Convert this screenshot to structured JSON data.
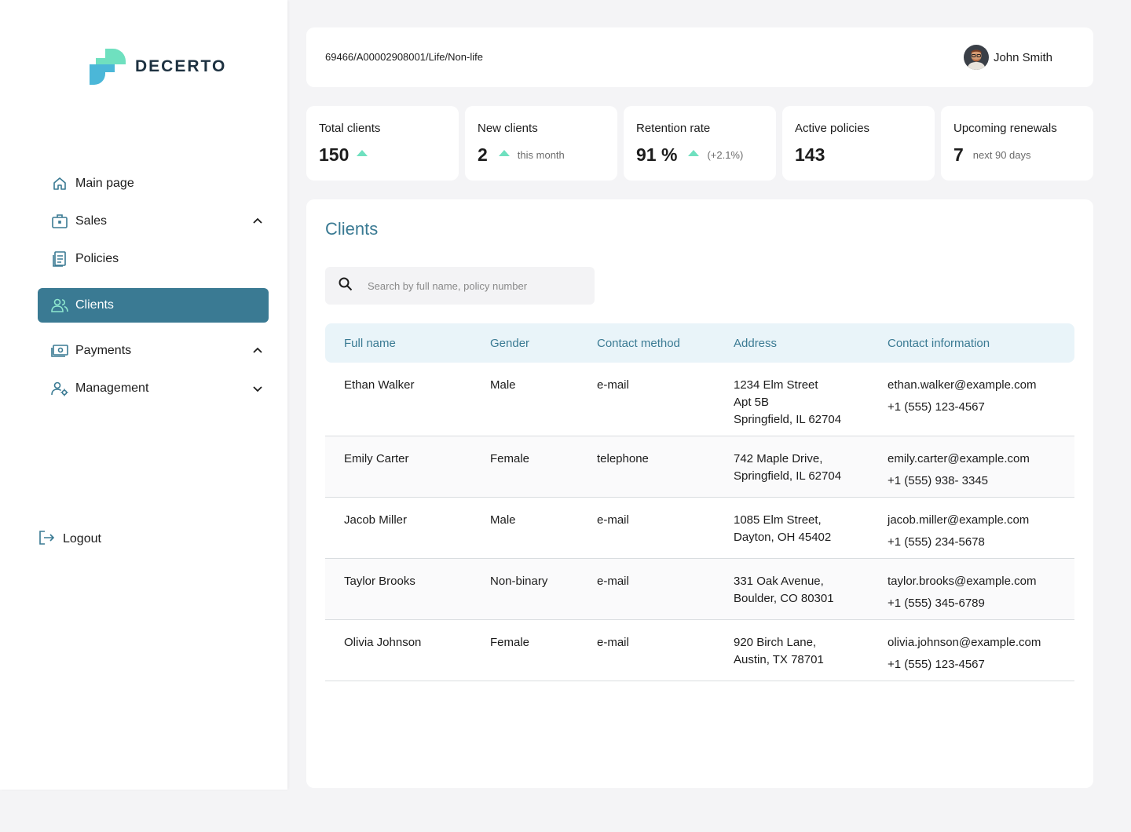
{
  "brand": {
    "name": "DECERTO",
    "colors": {
      "primary": "#3a7a93",
      "accent": "#6fe0bf",
      "logo_blue": "#4bb7d8"
    }
  },
  "sidebar": {
    "items": [
      {
        "label": "Main page",
        "icon": "home-icon"
      },
      {
        "label": "Sales",
        "icon": "briefcase-icon",
        "chevron": "up"
      },
      {
        "label": "Policies",
        "icon": "document-icon"
      },
      {
        "label": "Clients",
        "icon": "users-icon",
        "active": true
      },
      {
        "label": "Payments",
        "icon": "money-icon",
        "chevron": "up"
      },
      {
        "label": "Management",
        "icon": "user-settings-icon",
        "chevron": "down"
      }
    ],
    "logout_label": "Logout"
  },
  "header": {
    "breadcrumb": "69466/A00002908001/Life/Non-life",
    "user_name": "John Smith"
  },
  "stats": [
    {
      "title": "Total clients",
      "value": "150",
      "trend": "up",
      "note": ""
    },
    {
      "title": "New clients",
      "value": "2",
      "trend": "up",
      "note": "this month"
    },
    {
      "title": "Retention rate",
      "value": "91 %",
      "trend": "up",
      "note": "(+2.1%)"
    },
    {
      "title": "Active policies",
      "value": "143",
      "trend": "",
      "note": ""
    },
    {
      "title": "Upcoming renewals",
      "value": "7",
      "trend": "",
      "note": "next 90 days"
    }
  ],
  "clients": {
    "title": "Clients",
    "search_placeholder": "Search by full name, policy number",
    "columns": [
      "Full name",
      "Gender",
      "Contact method",
      "Address",
      "Contact information"
    ],
    "rows": [
      {
        "name": "Ethan Walker",
        "gender": "Male",
        "method": "e-mail",
        "address": [
          "1234 Elm Street",
          "Apt 5B",
          "Springfield, IL 62704"
        ],
        "email": "ethan.walker@example.com",
        "phone": "+1 (555) 123-4567"
      },
      {
        "name": "Emily Carter",
        "gender": "Female",
        "method": "telephone",
        "address": [
          "742 Maple Drive,",
          "Springfield, IL 62704"
        ],
        "email": "emily.carter@example.com",
        "phone": "+1 (555) 938- 3345"
      },
      {
        "name": "Jacob Miller",
        "gender": "Male",
        "method": "e-mail",
        "address": [
          "1085 Elm Street,",
          "Dayton, OH 45402"
        ],
        "email": "jacob.miller@example.com",
        "phone": "+1 (555) 234-5678"
      },
      {
        "name": "Taylor Brooks",
        "gender": "Non-binary",
        "method": "e-mail",
        "address": [
          "331 Oak Avenue,",
          "Boulder, CO 80301"
        ],
        "email": "taylor.brooks@example.com",
        "phone": "+1 (555) 345-6789"
      },
      {
        "name": "Olivia Johnson",
        "gender": "Female",
        "method": "e-mail",
        "address": [
          "920 Birch Lane,",
          "Austin, TX 78701"
        ],
        "email": "olivia.johnson@example.com",
        "phone": "+1 (555) 123-4567"
      }
    ]
  }
}
